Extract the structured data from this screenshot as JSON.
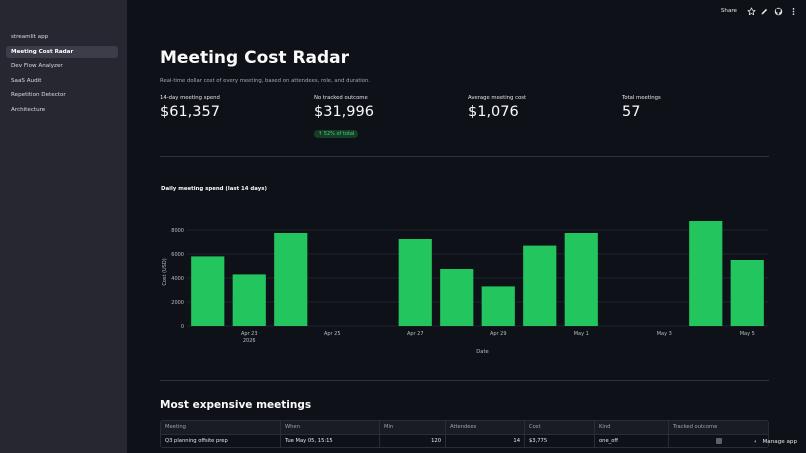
{
  "sidebar": {
    "items": [
      {
        "label": "streamlit app",
        "active": false
      },
      {
        "label": "Meeting Cost Radar",
        "active": true
      },
      {
        "label": "Dev Flow Analyzer",
        "active": false
      },
      {
        "label": "SaaS Audit",
        "active": false
      },
      {
        "label": "Repetition Detector",
        "active": false
      },
      {
        "label": "Architecture",
        "active": false
      }
    ]
  },
  "header": {
    "share_label": "Share",
    "icons": [
      "star-icon",
      "edit-icon",
      "github-icon",
      "more-icon"
    ]
  },
  "main": {
    "title": "Meeting Cost Radar",
    "subtitle": "Real-time dollar cost of every meeting, based on attendees, role, and duration.",
    "metrics": [
      {
        "label": "14-day meeting spend",
        "value": "$61,357"
      },
      {
        "label": "No tracked outcome",
        "value": "$31,996",
        "delta": "↑ 52% of total"
      },
      {
        "label": "Average meeting cost",
        "value": "$1,076"
      },
      {
        "label": "Total meetings",
        "value": "57"
      }
    ],
    "chart_title": "Daily meeting spend (last 14 days)",
    "section_title": "Most expensive meetings"
  },
  "chart_data": {
    "type": "bar",
    "title": "Daily meeting spend (last 14 days)",
    "xlabel": "Date",
    "ylabel": "Cost (USD)",
    "ylim": [
      0,
      9000
    ],
    "yticks": [
      0,
      2000,
      4000,
      6000,
      8000
    ],
    "xticks": [
      {
        "label": "Apr 23",
        "sub": "2026",
        "index": 1
      },
      {
        "label": "Apr 25",
        "index": 3
      },
      {
        "label": "Apr 27",
        "index": 5
      },
      {
        "label": "Apr 29",
        "index": 7
      },
      {
        "label": "May 1",
        "index": 9
      },
      {
        "label": "May 3",
        "index": 11
      },
      {
        "label": "May 5",
        "index": 13
      }
    ],
    "categories": [
      "Apr 22",
      "Apr 23",
      "Apr 24",
      "Apr 25",
      "Apr 26",
      "Apr 27",
      "Apr 28",
      "Apr 29",
      "Apr 30",
      "May 1",
      "May 2",
      "May 3",
      "May 4",
      "May 5"
    ],
    "values": [
      5800,
      4300,
      7750,
      0,
      0,
      7250,
      4750,
      3300,
      6700,
      7750,
      0,
      0,
      8750,
      5500
    ],
    "bar_color": "#22c55e",
    "grid": true
  },
  "table": {
    "columns": [
      "Meeting",
      "When",
      "Min",
      "Attendees",
      "Cost",
      "Kind",
      "Tracked outcome"
    ],
    "rows": [
      {
        "meeting": "Q3 planning offsite prep",
        "when": "Tue May 05, 15:15",
        "min": "120",
        "attendees": "14",
        "cost": "$3,775",
        "kind": "one_off",
        "tracked": false
      }
    ]
  },
  "footer": {
    "manage_label": "Manage app"
  }
}
